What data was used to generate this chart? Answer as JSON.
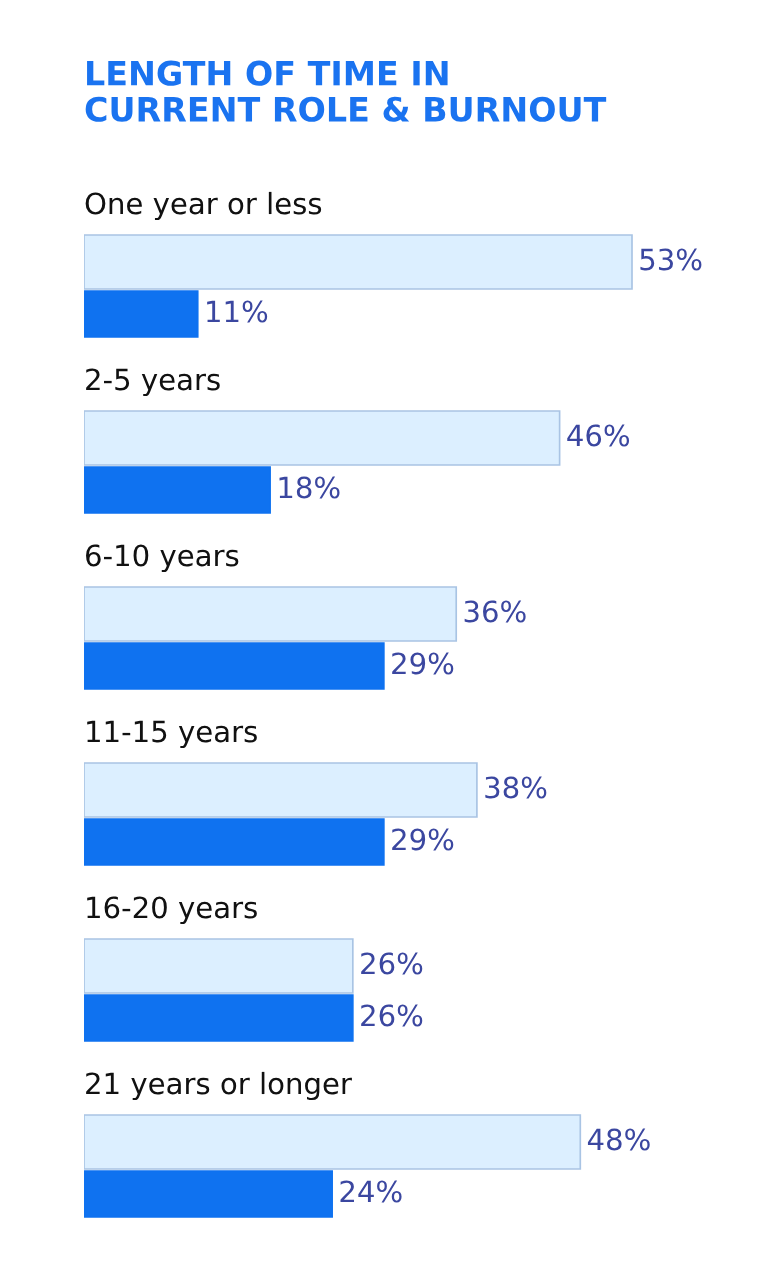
{
  "chart_data": {
    "type": "bar",
    "orientation": "horizontal",
    "title": "LENGTH OF TIME IN\nCURRENT ROLE & BURNOUT",
    "categories": [
      "One year or less",
      "2-5 years",
      "6-10 years",
      "11-15 years",
      "16-20 years",
      "21 years or longer"
    ],
    "series": [
      {
        "color": "#dcefff",
        "values": [
          53,
          46,
          36,
          38,
          26,
          48
        ],
        "value_labels": [
          "53%",
          "46%",
          "36%",
          "38%",
          "26%",
          "48%"
        ]
      },
      {
        "color": "#0f72f0",
        "values": [
          11,
          18,
          29,
          29,
          26,
          24
        ],
        "value_labels": [
          "11%",
          "18%",
          "29%",
          "29%",
          "26%",
          "24%"
        ]
      }
    ]
  }
}
